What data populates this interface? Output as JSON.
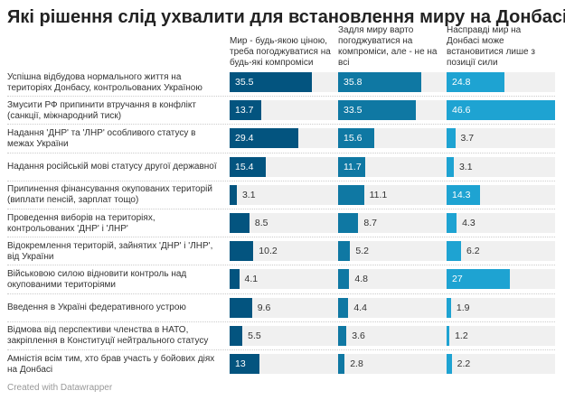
{
  "title": "Які рішення слід ухвалити для встановлення миру на Донбасі?",
  "footer": "Created with Datawrapper",
  "chart_data": {
    "type": "bar",
    "columns": [
      {
        "name": "Мир - будь-якою ціною, треба погоджуватися на будь-які компроміси",
        "color": "#03547f"
      },
      {
        "name": "Задля миру варто погоджуватися на компроміси, але - не на всі",
        "color": "#0f78a3"
      },
      {
        "name": "Насправді мир на Донбасі може встановитися лише з позиції сили",
        "color": "#1ea3d2"
      }
    ],
    "xlim": [
      0,
      46.6
    ],
    "rows": [
      {
        "label": "Успішна відбудова нормального життя на територіях Донбасу, контрольованих Україною",
        "values": [
          35.5,
          35.8,
          24.8
        ]
      },
      {
        "label": "Змусити РФ припинити втручання в конфлікт (санкції, міжнародний тиск)",
        "values": [
          13.7,
          33.5,
          46.6
        ]
      },
      {
        "label": "Надання 'ДНР' та 'ЛНР' особливого статусу в межах України",
        "values": [
          29.4,
          15.6,
          3.7
        ]
      },
      {
        "label": "Надання російській мові статусу другої державної",
        "values": [
          15.4,
          11.7,
          3.1
        ]
      },
      {
        "label": "Припинення фінансування окупованих територій (виплати пенсій, зарплат тощо)",
        "values": [
          3.1,
          11.1,
          14.3
        ]
      },
      {
        "label": "Проведення виборів на територіях, контрольованих 'ДНР' і 'ЛНР'",
        "values": [
          8.5,
          8.7,
          4.3
        ]
      },
      {
        "label": "Відокремлення територій, зайнятих 'ДНР' і 'ЛНР', від України",
        "values": [
          10.2,
          5.2,
          6.2
        ]
      },
      {
        "label": "Військовою силою відновити контроль над окупованими територіями",
        "values": [
          4.1,
          4.8,
          27
        ]
      },
      {
        "label": "Введення в Україні федеративного устрою",
        "values": [
          9.6,
          4.4,
          1.9
        ]
      },
      {
        "label": "Відмова від перспективи членства в НАТО, закріплення в Конституції нейтрального статусу",
        "values": [
          5.5,
          3.6,
          1.2
        ]
      },
      {
        "label": "Амністія всім тим, хто брав участь у бойових діях на Донбасі",
        "values": [
          13,
          2.8,
          2.2
        ]
      }
    ]
  }
}
